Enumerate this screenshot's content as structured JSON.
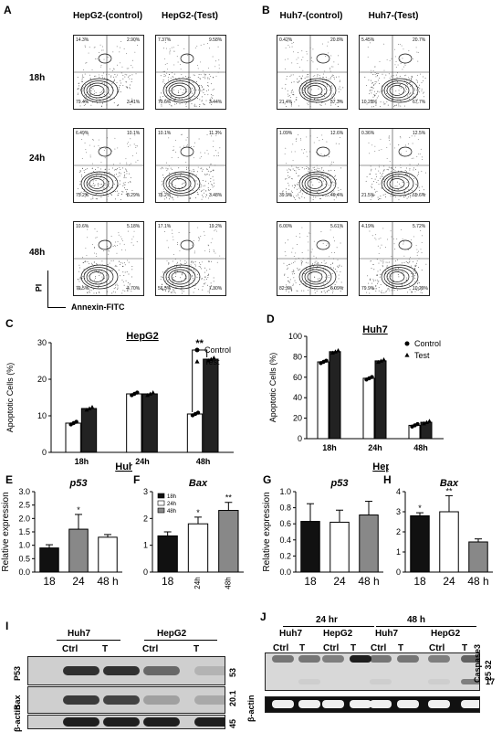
{
  "panel_a": {
    "letter": "A",
    "col_headers": [
      "HepG2-(control)",
      "HepG2-(Test)"
    ],
    "row_labels": [
      "18h",
      "24h",
      "48h"
    ],
    "plots": [
      [
        [
          "14.3%",
          "2.90%",
          "79.4%",
          "3.41%"
        ],
        [
          "7.37%",
          "9.58%",
          "79.6%",
          "3.44%"
        ]
      ],
      [
        [
          "6.49%",
          "10.1%",
          "75.2%",
          "8.29%"
        ],
        [
          "10.1%",
          "11.3%",
          "75.2%",
          "3.48%"
        ]
      ],
      [
        [
          "10.6%",
          "5.18%",
          "79.5%",
          "4.70%"
        ],
        [
          "17.1%",
          "19.2%",
          "56.5%",
          "7.30%"
        ]
      ]
    ],
    "y_axis_label": "PI",
    "x_axis_label": "Annexin-FITC"
  },
  "panel_b": {
    "letter": "B",
    "col_headers": [
      "Huh7-(control)",
      "Huh7-(Test)"
    ],
    "plots": [
      [
        [
          "0.42%",
          "20.8%",
          "21.4%",
          "57.3%"
        ],
        [
          "5.45%",
          "20.7%",
          "10.29%",
          "67.7%"
        ]
      ],
      [
        [
          "1.09%",
          "12.6%",
          "39.9%",
          "46.4%"
        ],
        [
          "0.36%",
          "12.5%",
          "21.5%",
          "65.6%"
        ]
      ],
      [
        [
          "6.00%",
          "5.61%",
          "82.3%",
          "6.09%"
        ],
        [
          "4.19%",
          "5.72%",
          "79.9%",
          "10.29%"
        ]
      ]
    ]
  },
  "panel_c": {
    "letter": "C",
    "annotation": "**"
  },
  "panel_d": {
    "letter": "D"
  },
  "panel_e": {
    "letter": "E"
  },
  "panel_f": {
    "letter": "F"
  },
  "panel_g": {
    "letter": "G"
  },
  "panel_h": {
    "letter": "H"
  },
  "panel_i": {
    "letter": "I",
    "groups": [
      "Huh7",
      "HepG2"
    ],
    "lanes": [
      "Ctrl",
      "T",
      "Ctrl",
      "T"
    ],
    "rows": [
      "P53",
      "Bax",
      "β-actin"
    ],
    "mw": [
      "53",
      "20.1",
      "45"
    ]
  },
  "panel_j": {
    "letter": "J",
    "time_groups": [
      "24 hr",
      "48 h"
    ],
    "cell_groups": [
      "Huh7",
      "HepG2",
      "Huh7",
      "HepG2"
    ],
    "lanes": [
      "Ctrl",
      "T",
      "Ctrl",
      "T",
      "Ctrl",
      "T",
      "Ctrl",
      "T"
    ],
    "rows": [
      "Caspase3",
      "β-actin"
    ],
    "mw": [
      "25 32",
      "17"
    ]
  },
  "chart_data": [
    {
      "id": "C",
      "type": "bar",
      "title": "HepG2",
      "ylabel": "Apoptotic Cells (%)",
      "categories": [
        "18h",
        "24h",
        "48h"
      ],
      "ylim": [
        0,
        30
      ],
      "yticks": [
        0,
        10,
        20,
        30
      ],
      "legend": "top-right",
      "series": [
        {
          "name": "Control",
          "values": [
            8,
            16,
            10.5
          ],
          "color": "#ffffff"
        },
        {
          "name": "Test",
          "values": [
            12,
            16,
            25.5
          ],
          "color": "#222222"
        }
      ]
    },
    {
      "id": "D",
      "type": "bar",
      "title": "Huh7",
      "ylabel": "Apoptotic Cells (%)",
      "categories": [
        "18h",
        "24h",
        "48h"
      ],
      "ylim": [
        0,
        100
      ],
      "yticks": [
        0,
        20,
        40,
        60,
        80,
        100
      ],
      "legend": "top-right",
      "series": [
        {
          "name": "Control",
          "values": [
            75,
            59,
            13
          ],
          "color": "#ffffff"
        },
        {
          "name": "Test",
          "values": [
            85,
            76,
            16
          ],
          "color": "#222222"
        }
      ]
    },
    {
      "id": "E",
      "type": "bar",
      "title": "p53",
      "group_title": "Huh7",
      "ylabel": "Relative expression",
      "categories": [
        "18",
        "24",
        "48 h"
      ],
      "ylim": [
        0,
        3.0
      ],
      "yticks": [
        0,
        0.5,
        1.0,
        1.5,
        2.0,
        2.5,
        3.0
      ],
      "values": [
        0.9,
        1.6,
        1.3
      ],
      "errors": [
        0.12,
        0.55,
        0.1
      ],
      "colors": [
        "#111111",
        "#888888",
        "#ffffff"
      ],
      "stars": [
        "",
        "*",
        ""
      ]
    },
    {
      "id": "F",
      "type": "bar",
      "title": "Bax",
      "categories": [
        "18",
        "24h",
        "48h"
      ],
      "ylim": [
        0,
        3
      ],
      "yticks": [
        0,
        1,
        2,
        3
      ],
      "values": [
        1.35,
        1.8,
        2.3
      ],
      "errors": [
        0.15,
        0.25,
        0.3
      ],
      "colors": [
        "#111111",
        "#ffffff",
        "#888888"
      ],
      "stars": [
        "",
        "*",
        "**"
      ],
      "legend_entries": [
        "18h",
        "24h",
        "48h"
      ]
    },
    {
      "id": "G",
      "type": "bar",
      "title": "p53",
      "group_title": "HepG2",
      "ylabel": "Relative expression",
      "categories": [
        "18",
        "24",
        "48 h"
      ],
      "ylim": [
        0,
        1.0
      ],
      "yticks": [
        0,
        0.2,
        0.4,
        0.6,
        0.8,
        1.0
      ],
      "values": [
        0.63,
        0.62,
        0.71
      ],
      "errors": [
        0.22,
        0.15,
        0.17
      ],
      "colors": [
        "#111111",
        "#ffffff",
        "#888888"
      ],
      "stars": [
        "",
        "",
        ""
      ]
    },
    {
      "id": "H",
      "type": "bar",
      "title": "Bax",
      "categories": [
        "18",
        "24",
        "48 h"
      ],
      "ylim": [
        0,
        4
      ],
      "yticks": [
        0,
        1,
        2,
        3,
        4
      ],
      "values": [
        2.8,
        3.0,
        1.5
      ],
      "errors": [
        0.15,
        0.8,
        0.15
      ],
      "colors": [
        "#111111",
        "#ffffff",
        "#888888"
      ],
      "stars": [
        "*",
        "**",
        ""
      ]
    }
  ]
}
